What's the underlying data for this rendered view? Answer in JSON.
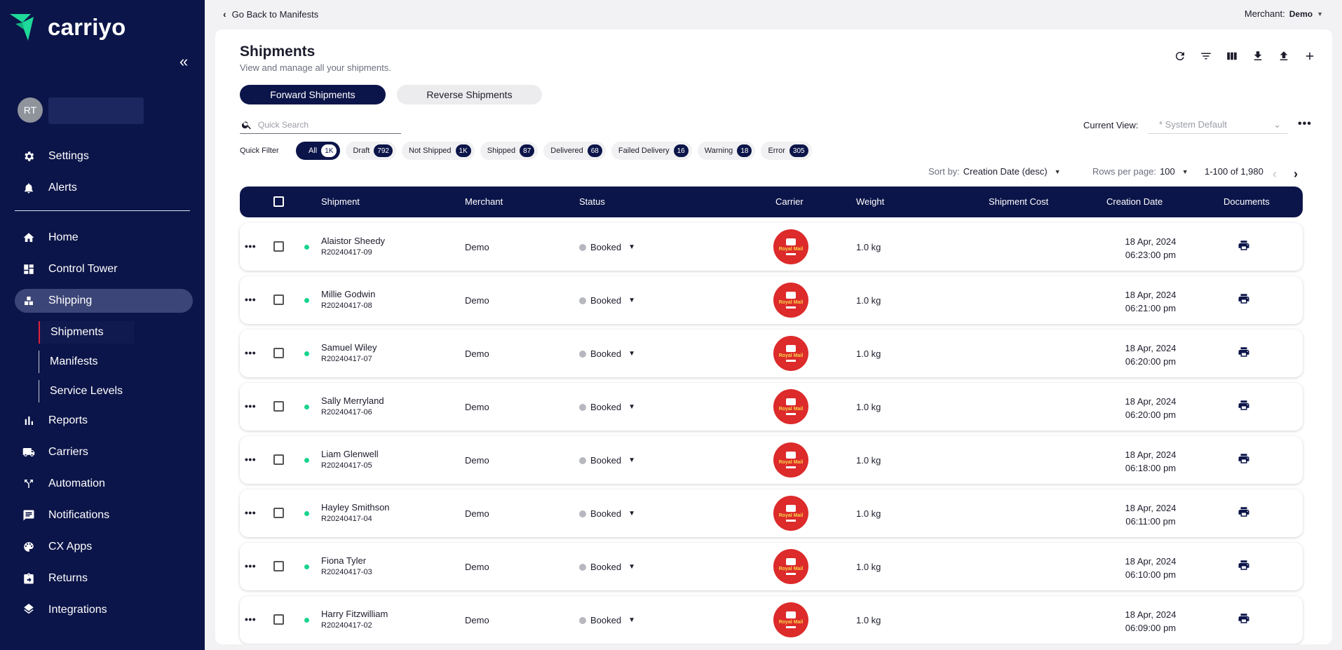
{
  "app": {
    "name": "carriyo",
    "avatar_initials": "RT"
  },
  "sidebar": {
    "items": [
      {
        "key": "settings",
        "label": "Settings",
        "icon": "gear-icon"
      },
      {
        "key": "alerts",
        "label": "Alerts",
        "icon": "bell-icon"
      },
      {
        "key": "home",
        "label": "Home",
        "icon": "home-icon"
      },
      {
        "key": "control-tower",
        "label": "Control Tower",
        "icon": "dashboard-icon"
      },
      {
        "key": "shipping",
        "label": "Shipping",
        "icon": "shipping-icon"
      },
      {
        "key": "reports",
        "label": "Reports",
        "icon": "bar-chart-icon"
      },
      {
        "key": "carriers",
        "label": "Carriers",
        "icon": "truck-icon"
      },
      {
        "key": "automation",
        "label": "Automation",
        "icon": "split-arrows-icon"
      },
      {
        "key": "notifications",
        "label": "Notifications",
        "icon": "message-icon"
      },
      {
        "key": "cx-apps",
        "label": "CX Apps",
        "icon": "palette-icon"
      },
      {
        "key": "returns",
        "label": "Returns",
        "icon": "return-box-icon"
      },
      {
        "key": "integrations",
        "label": "Integrations",
        "icon": "layers-icon"
      }
    ],
    "shipping_sub": [
      {
        "label": "Shipments"
      },
      {
        "label": "Manifests"
      },
      {
        "label": "Service Levels"
      }
    ]
  },
  "topbar": {
    "back_label": "Go Back to Manifests",
    "merchant_label": "Merchant:",
    "merchant_value": "Demo"
  },
  "page": {
    "title": "Shipments",
    "subtitle": "View and manage all your shipments.",
    "tabs": [
      "Forward Shipments",
      "Reverse Shipments"
    ],
    "search_placeholder": "Quick Search",
    "current_view_label": "Current View:",
    "current_view_value": "* System Default",
    "quick_filter_label": "Quick Filter",
    "sort_label": "Sort by:",
    "sort_value": "Creation Date (desc)",
    "rows_label": "Rows per page:",
    "rows_value": "100",
    "range": "1-100 of 1,980"
  },
  "quick_filters": [
    {
      "label": "All",
      "count": "1K"
    },
    {
      "label": "Draft",
      "count": "792"
    },
    {
      "label": "Not Shipped",
      "count": "1K"
    },
    {
      "label": "Shipped",
      "count": "87"
    },
    {
      "label": "Delivered",
      "count": "68"
    },
    {
      "label": "Failed Delivery",
      "count": "16"
    },
    {
      "label": "Warning",
      "count": "18"
    },
    {
      "label": "Error",
      "count": "305"
    }
  ],
  "table": {
    "columns": [
      "Shipment",
      "Merchant",
      "Status",
      "Carrier",
      "Weight",
      "Shipment Cost",
      "Creation Date",
      "Documents"
    ],
    "carrier_logo_text": "Royal Mail",
    "rows": [
      {
        "name": "Alaistor Sheedy",
        "ref": "R20240417-09",
        "merchant": "Demo",
        "status": "Booked",
        "weight": "1.0 kg",
        "date": "18 Apr, 2024",
        "time": "06:23:00 pm"
      },
      {
        "name": "Millie Godwin",
        "ref": "R20240417-08",
        "merchant": "Demo",
        "status": "Booked",
        "weight": "1.0 kg",
        "date": "18 Apr, 2024",
        "time": "06:21:00 pm"
      },
      {
        "name": "Samuel Wiley",
        "ref": "R20240417-07",
        "merchant": "Demo",
        "status": "Booked",
        "weight": "1.0 kg",
        "date": "18 Apr, 2024",
        "time": "06:20:00 pm"
      },
      {
        "name": "Sally Merryland",
        "ref": "R20240417-06",
        "merchant": "Demo",
        "status": "Booked",
        "weight": "1.0 kg",
        "date": "18 Apr, 2024",
        "time": "06:20:00 pm"
      },
      {
        "name": "Liam Glenwell",
        "ref": "R20240417-05",
        "merchant": "Demo",
        "status": "Booked",
        "weight": "1.0 kg",
        "date": "18 Apr, 2024",
        "time": "06:18:00 pm"
      },
      {
        "name": "Hayley Smithson",
        "ref": "R20240417-04",
        "merchant": "Demo",
        "status": "Booked",
        "weight": "1.0 kg",
        "date": "18 Apr, 2024",
        "time": "06:11:00 pm"
      },
      {
        "name": "Fiona Tyler",
        "ref": "R20240417-03",
        "merchant": "Demo",
        "status": "Booked",
        "weight": "1.0 kg",
        "date": "18 Apr, 2024",
        "time": "06:10:00 pm"
      },
      {
        "name": "Harry Fitzwilliam",
        "ref": "R20240417-02",
        "merchant": "Demo",
        "status": "Booked",
        "weight": "1.0 kg",
        "date": "18 Apr, 2024",
        "time": "06:09:00 pm"
      }
    ]
  },
  "colors": {
    "primary": "#0c1549",
    "accent": "#18d48c",
    "carrier": "#dd2a2a",
    "active_marker": "#e0213b"
  }
}
